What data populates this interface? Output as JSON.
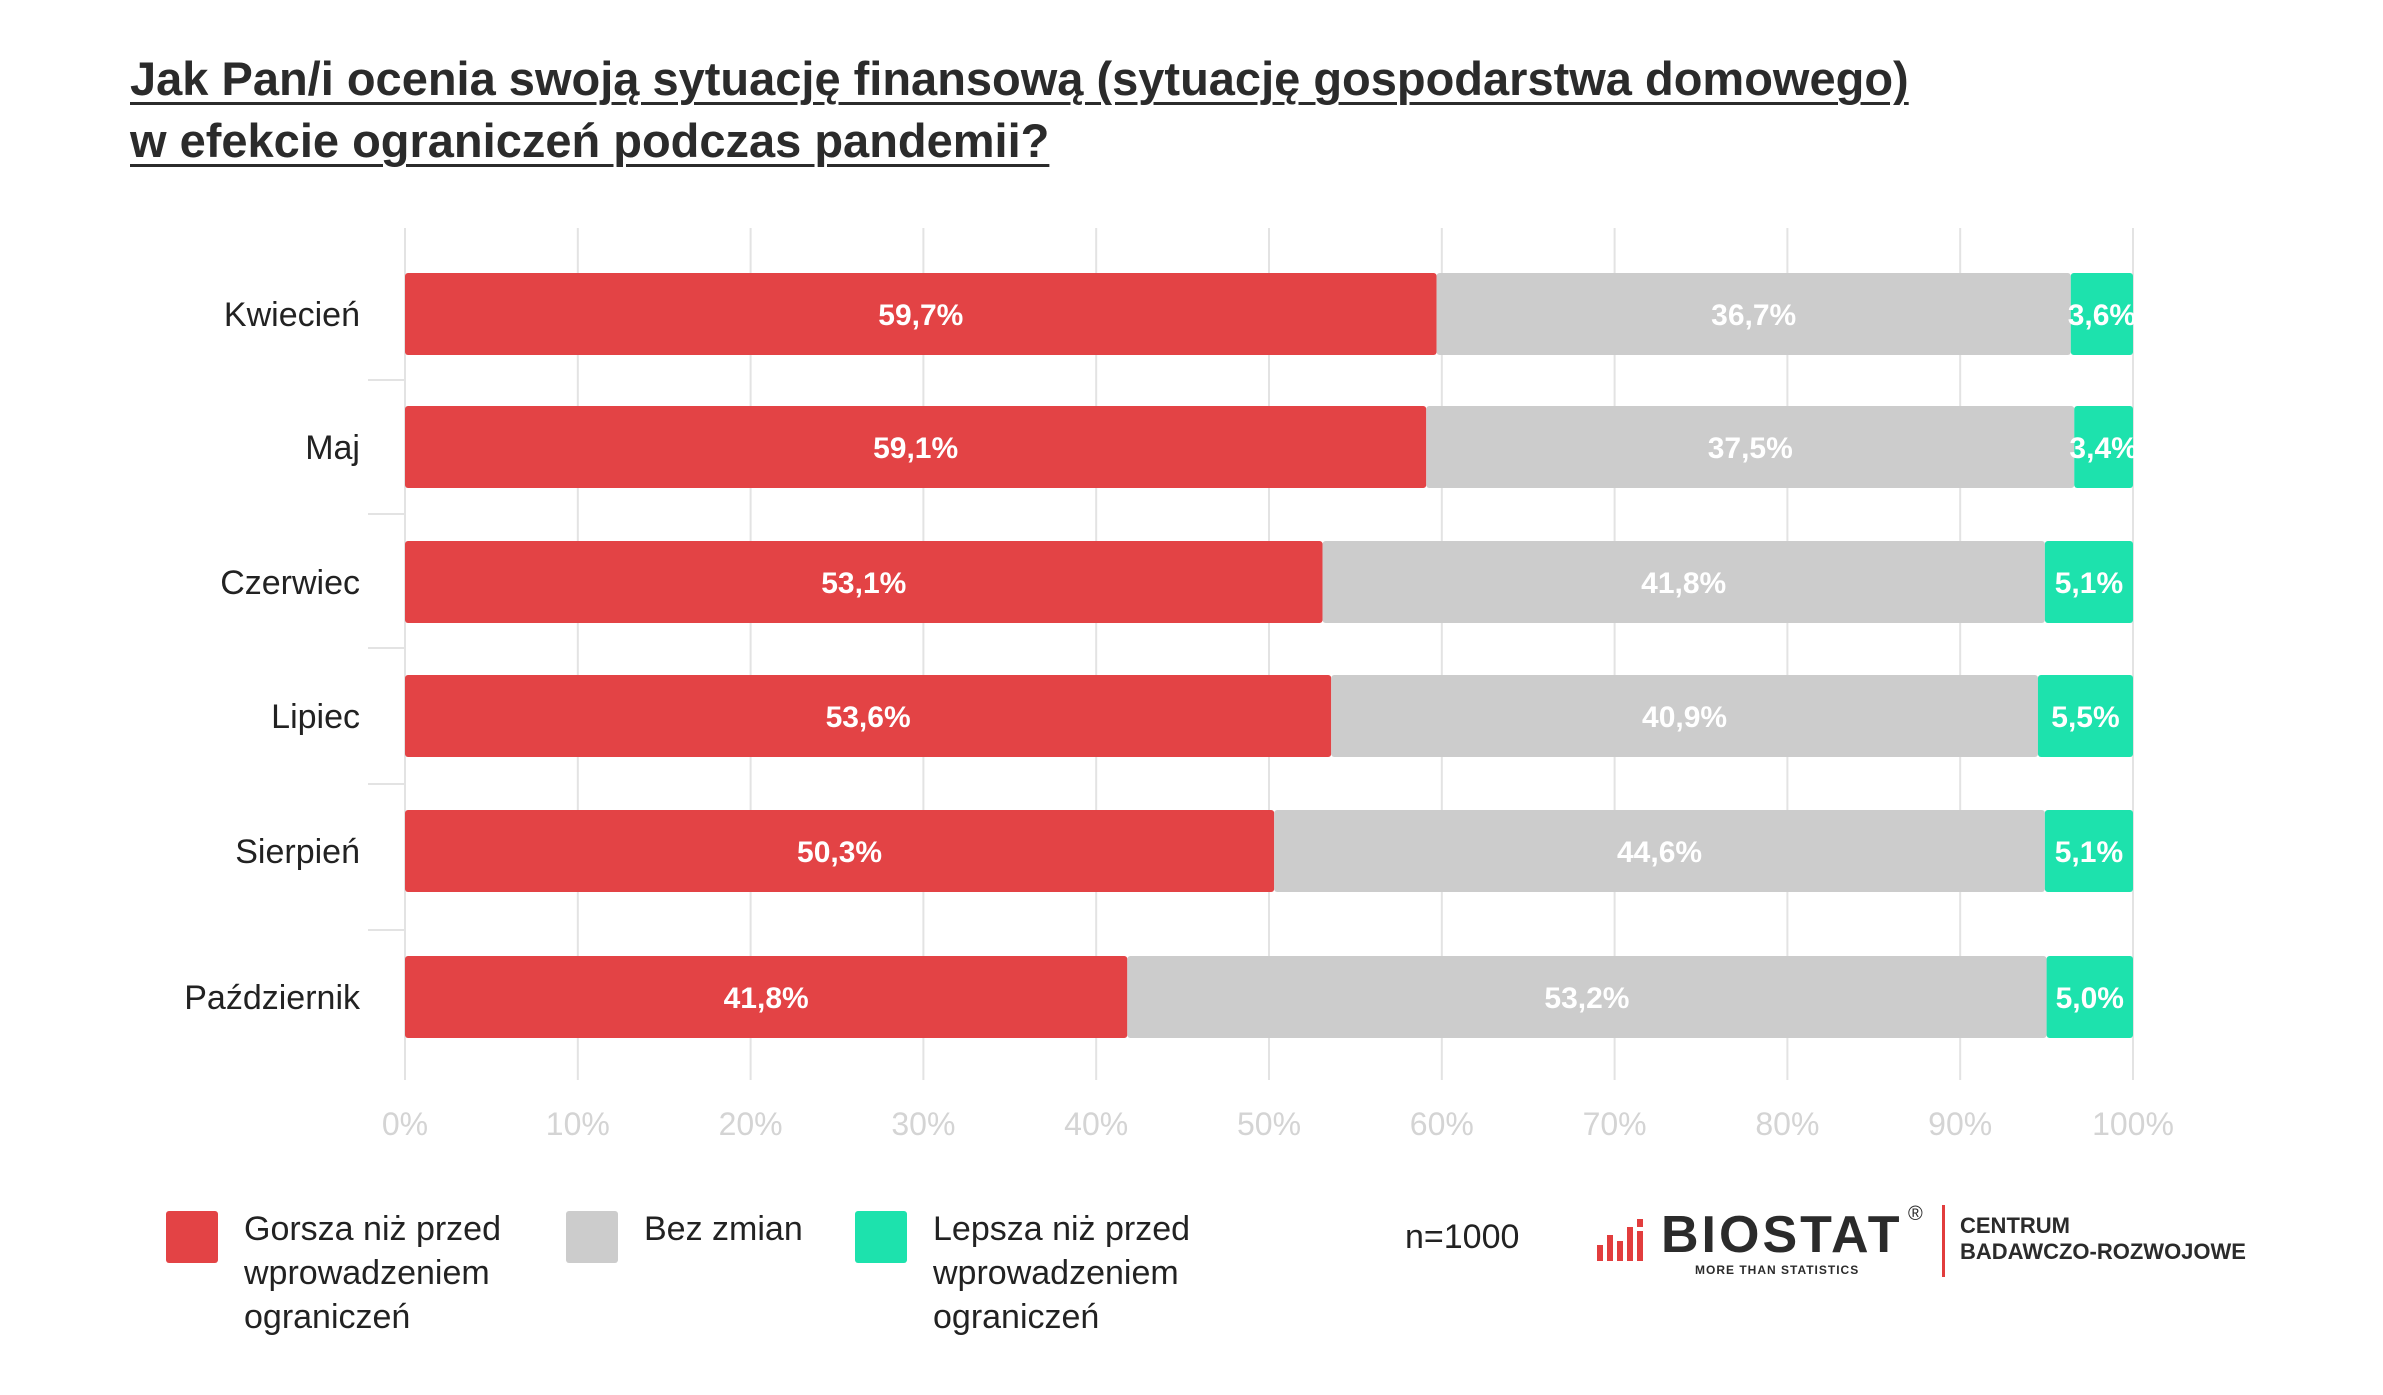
{
  "title": {
    "line1": "Jak Pan/i ocenia swoją sytuację finansową (sytuację gospodarstwa domowego)",
    "line2": "w efekcie ograniczeń podczas pandemii?"
  },
  "chart_data": {
    "type": "bar",
    "orientation": "horizontal",
    "stacked": true,
    "categories": [
      "Kwiecień",
      "Maj",
      "Czerwiec",
      "Lipiec",
      "Sierpień",
      "Październik"
    ],
    "series": [
      {
        "name": "Gorsza niż przed wprowadzeniem ograniczeń",
        "color": "#e34345",
        "values": [
          59.7,
          59.1,
          53.1,
          53.6,
          50.3,
          41.8
        ],
        "labels": [
          "59,7%",
          "59,1%",
          "53,1%",
          "53,6%",
          "50,3%",
          "41,8%"
        ]
      },
      {
        "name": "Bez zmian",
        "color": "#cccccc",
        "values": [
          36.7,
          37.5,
          41.8,
          40.9,
          44.6,
          53.2
        ],
        "labels": [
          "36,7%",
          "37,5%",
          "41,8%",
          "40,9%",
          "44,6%",
          "53,2%"
        ]
      },
      {
        "name": "Lepsza niż przed wprowadzeniem ograniczeń",
        "color": "#1de2ad",
        "values": [
          3.6,
          3.4,
          5.1,
          5.5,
          5.1,
          5.0
        ],
        "labels": [
          "3,6%",
          "3,4%",
          "5,1%",
          "5,5%",
          "5,1%",
          "5,0%"
        ]
      }
    ],
    "xlim": [
      0,
      100
    ],
    "xticks": [
      "0%",
      "10%",
      "20%",
      "30%",
      "40%",
      "50%",
      "60%",
      "70%",
      "80%",
      "90%",
      "100%"
    ],
    "grid": true,
    "legend": "bottom-left"
  },
  "sample_size": "n=1000",
  "logo": {
    "wordmark": "BIOSTAT",
    "tagline": "MORE THAN STATISTICS",
    "registered": "®",
    "division_line1": "CENTRUM",
    "division_line2": "BADAWCZO-ROZWOJOWE"
  }
}
